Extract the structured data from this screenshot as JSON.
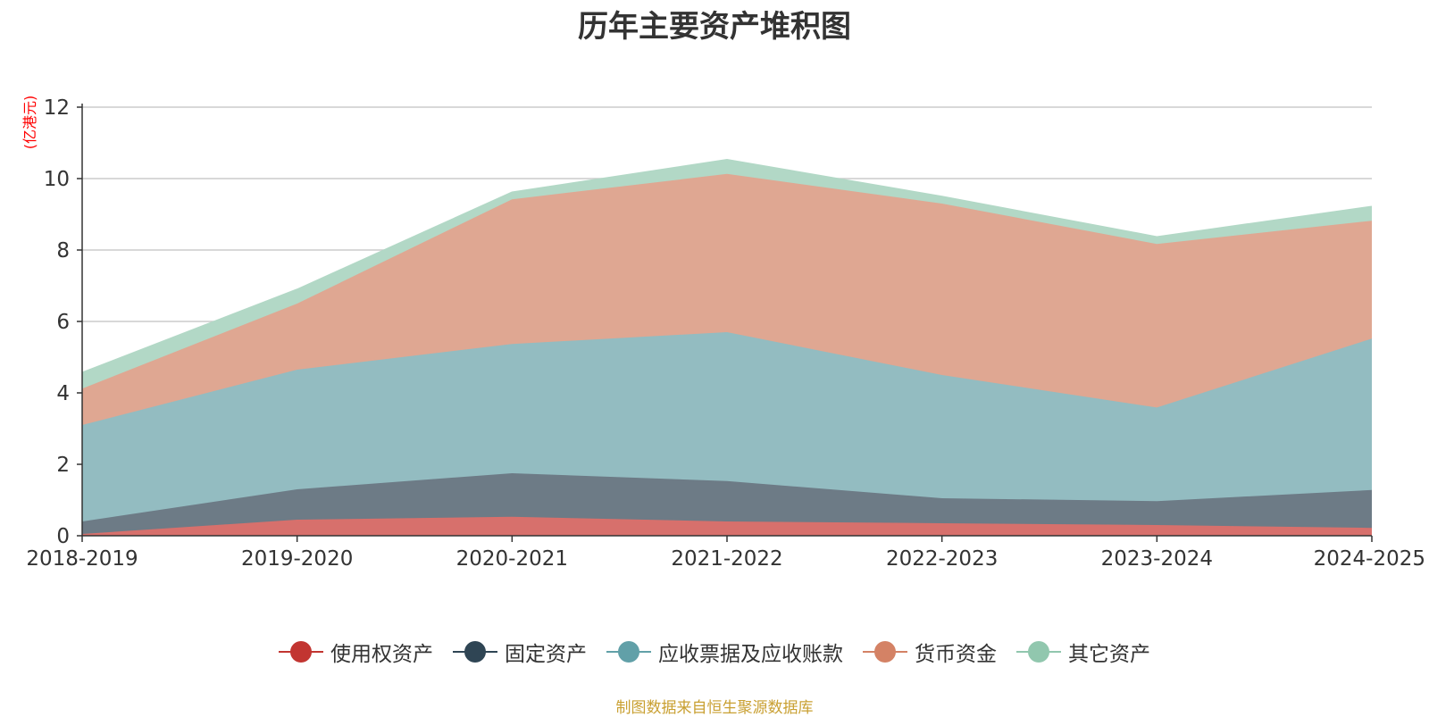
{
  "chart_data": {
    "type": "area",
    "stacked": true,
    "title": "历年主要资产堆积图",
    "ylabel": "(亿港元)",
    "categories": [
      "2018-2019",
      "2019-2020",
      "2020-2021",
      "2021-2022",
      "2022-2023",
      "2023-2024",
      "2024-2025"
    ],
    "ylim": [
      0,
      12
    ],
    "yticks": [
      0,
      2,
      4,
      6,
      8,
      10,
      12
    ],
    "grid": true,
    "legend_position": "bottom",
    "series": [
      {
        "name": "使用权资产",
        "color": "#c23531",
        "fill": "#d7706c",
        "values": [
          0.05,
          0.45,
          0.53,
          0.4,
          0.35,
          0.3,
          0.22
        ]
      },
      {
        "name": "固定资产",
        "color": "#2f4554",
        "fill": "#6d7b86",
        "values": [
          0.35,
          0.85,
          1.22,
          1.13,
          0.7,
          0.67,
          1.06
        ]
      },
      {
        "name": "应收票据及应收账款",
        "color": "#61a0a8",
        "fill": "#93bcc1",
        "values": [
          2.7,
          3.35,
          3.62,
          4.17,
          3.45,
          2.62,
          4.24
        ]
      },
      {
        "name": "货币资金",
        "color": "#d48265",
        "fill": "#dfa792",
        "values": [
          1.02,
          1.85,
          4.05,
          4.43,
          4.8,
          4.58,
          3.3
        ]
      },
      {
        "name": "其它资产",
        "color": "#91c7ae",
        "fill": "#b2d8c6",
        "values": [
          0.45,
          0.4,
          0.2,
          0.4,
          0.2,
          0.2,
          0.4
        ]
      }
    ],
    "footnote": "制图数据来自恒生聚源数据库"
  }
}
